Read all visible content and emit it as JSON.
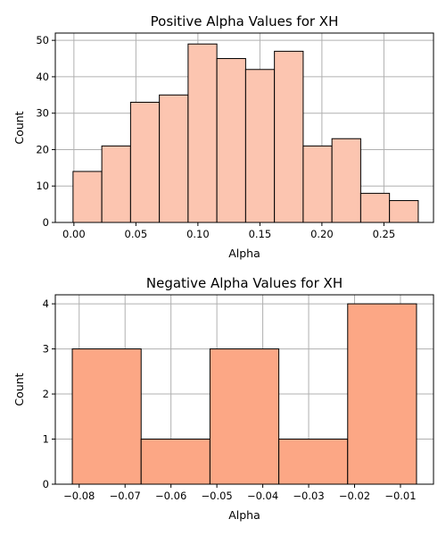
{
  "chart_data": [
    {
      "type": "bar",
      "title": "Positive Alpha Values for XH",
      "xlabel": "Alpha",
      "ylabel": "Count",
      "bar_color": "#fcc5b0",
      "bin_edges": [
        -0.0007,
        0.0225,
        0.0457,
        0.0689,
        0.0921,
        0.1153,
        0.1385,
        0.1617,
        0.1849,
        0.2081,
        0.2313,
        0.2545,
        0.2777
      ],
      "values": [
        14,
        21,
        33,
        35,
        49,
        45,
        42,
        47,
        21,
        23,
        8,
        6
      ],
      "xlim": [
        -0.015,
        0.29
      ],
      "ylim": [
        0,
        52
      ],
      "xticks": [
        0.0,
        0.05,
        0.1,
        0.15,
        0.2,
        0.25
      ],
      "xtick_labels": [
        "0.00",
        "0.05",
        "0.10",
        "0.15",
        "0.20",
        "0.25"
      ],
      "yticks": [
        0,
        10,
        20,
        30,
        40,
        50
      ],
      "ytick_labels": [
        "0",
        "10",
        "20",
        "30",
        "40",
        "50"
      ],
      "grid": true
    },
    {
      "type": "bar",
      "title": "Negative Alpha Values for XH",
      "xlabel": "Alpha",
      "ylabel": "Count",
      "bar_color": "#fca785",
      "bin_edges": [
        -0.0815,
        -0.0665,
        -0.0515,
        -0.0365,
        -0.0215,
        -0.0065
      ],
      "values": [
        3,
        1,
        3,
        1,
        4
      ],
      "xlim": [
        -0.0852,
        -0.0028
      ],
      "ylim": [
        0,
        4.2
      ],
      "xticks": [
        -0.08,
        -0.07,
        -0.06,
        -0.05,
        -0.04,
        -0.03,
        -0.02,
        -0.01
      ],
      "xtick_labels": [
        "−0.08",
        "−0.07",
        "−0.06",
        "−0.05",
        "−0.04",
        "−0.03",
        "−0.02",
        "−0.01"
      ],
      "yticks": [
        0,
        1,
        2,
        3,
        4
      ],
      "ytick_labels": [
        "0",
        "1",
        "2",
        "3",
        "4"
      ],
      "grid": true
    }
  ]
}
